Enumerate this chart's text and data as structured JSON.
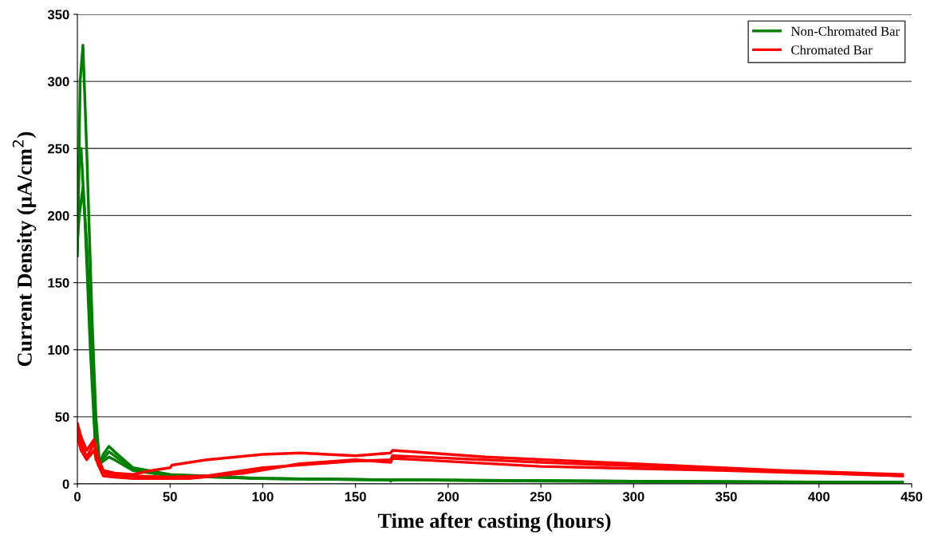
{
  "chart_data": {
    "type": "line",
    "xlabel": "Time after casting (hours)",
    "ylabel": "Current Density (μA/cm$^{2}$)",
    "xlim": [
      0,
      450
    ],
    "xticks": [
      0,
      50,
      100,
      150,
      200,
      250,
      300,
      350,
      400,
      450
    ],
    "ylim": [
      0,
      350
    ],
    "yticks": [
      0,
      50,
      100,
      150,
      200,
      250,
      300,
      350
    ],
    "grid": "y",
    "legend": "top right",
    "marker": "none",
    "line_style": "solid",
    "series": [
      {
        "name": "Non-Chromated Bar",
        "color": "#008000",
        "x": [
          0,
          1.5,
          3,
          5,
          8,
          10,
          12,
          14,
          17,
          20,
          30,
          50,
          100,
          168,
          169,
          170,
          250,
          350,
          445
        ],
        "values": [
          170,
          300,
          327,
          250,
          120,
          50,
          15,
          22,
          28,
          24,
          12,
          7,
          4,
          3,
          2,
          3,
          2,
          1.5,
          1
        ]
      },
      {
        "color": "#008000",
        "x": [
          0,
          1,
          2,
          4,
          7,
          10,
          13,
          17,
          20,
          30,
          50,
          100,
          170,
          300,
          445
        ],
        "values": [
          175,
          245,
          250,
          200,
          100,
          20,
          17,
          24,
          21,
          11,
          6,
          4,
          3,
          2,
          1
        ]
      },
      {
        "color": "#008000",
        "x": [
          0,
          1,
          3,
          5,
          8,
          10,
          13,
          17,
          20,
          30,
          50,
          100,
          170,
          300,
          445
        ],
        "values": [
          180,
          200,
          221,
          180,
          90,
          18,
          16,
          20,
          18,
          10,
          6,
          4,
          3,
          2,
          1
        ]
      },
      {
        "name": "Chromated Bar",
        "color": "#ff0000",
        "x": [
          0,
          2,
          5,
          9,
          11,
          14,
          20,
          30,
          40,
          50,
          51,
          70,
          100,
          120,
          150,
          169,
          170,
          220,
          300,
          380,
          445
        ],
        "values": [
          45,
          35,
          25,
          33,
          20,
          10,
          8,
          7,
          10,
          12,
          14,
          18,
          22,
          23,
          21,
          23,
          25,
          20,
          15,
          10,
          7
        ]
      },
      {
        "color": "#ff0000",
        "x": [
          0,
          2,
          5,
          9,
          11,
          14,
          20,
          30,
          50,
          70,
          100,
          150,
          169,
          170,
          250,
          350,
          445
        ],
        "values": [
          40,
          30,
          20,
          30,
          18,
          8,
          7,
          6,
          5,
          6,
          12,
          17,
          18,
          21,
          16,
          11,
          6
        ]
      },
      {
        "color": "#ff0000",
        "x": [
          0,
          2,
          5,
          9,
          11,
          14,
          20,
          30,
          60,
          90,
          120,
          150,
          169,
          170,
          250,
          350,
          445
        ],
        "values": [
          35,
          25,
          18,
          25,
          15,
          6,
          5,
          4,
          4,
          8,
          15,
          18,
          16,
          19,
          13,
          10,
          6
        ]
      }
    ]
  }
}
